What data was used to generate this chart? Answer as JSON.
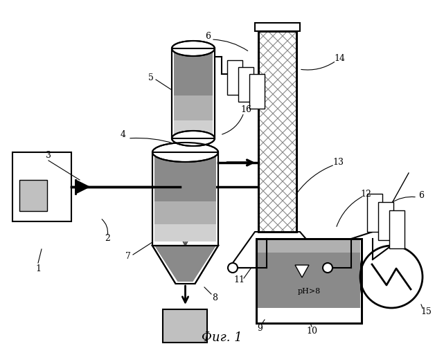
{
  "title": "Фиг. 1",
  "bg_color": "#ffffff",
  "fig_width": 6.41,
  "fig_height": 5.0,
  "dpi": 100,
  "component_colors": {
    "gray_dark": "#8a8a8a",
    "gray_mid": "#b0b0b0",
    "gray_light": "#d0d0d0",
    "gray_fill": "#c0c0c0",
    "basin_fill": "#909090",
    "white": "#ffffff",
    "black": "#000000"
  }
}
